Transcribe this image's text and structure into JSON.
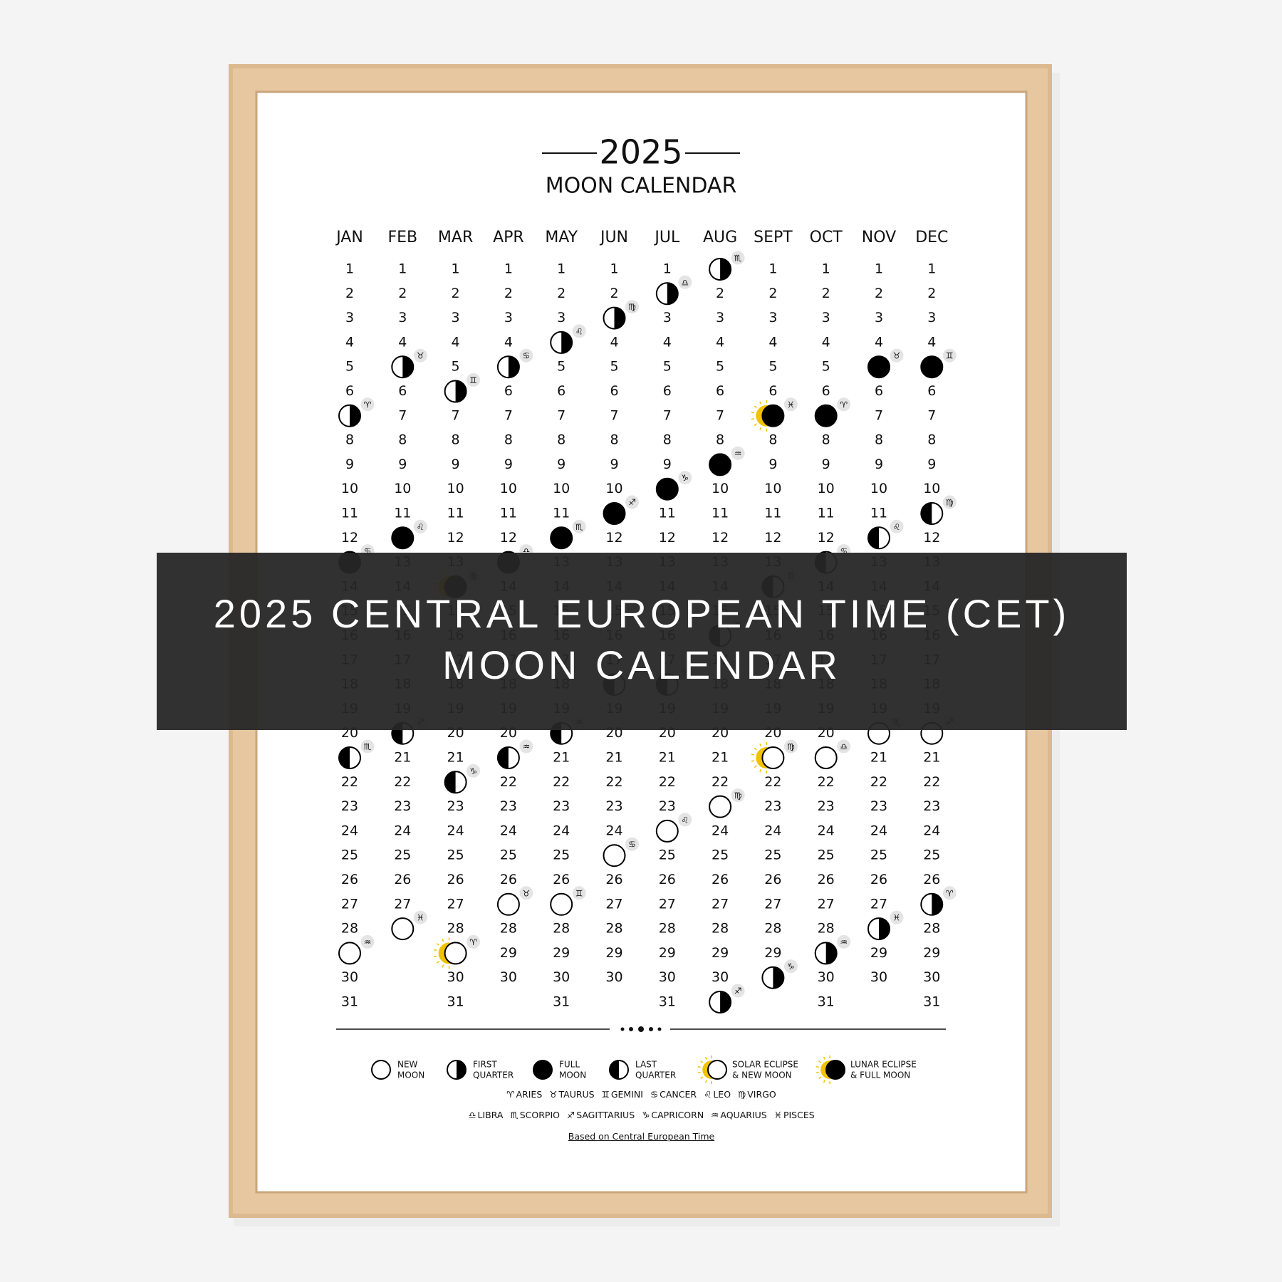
{
  "poster": {
    "year": "2025",
    "subtitle": "MOON CALENDAR"
  },
  "months": [
    {
      "name": "JAN",
      "days": [
        1,
        2,
        3,
        4,
        5,
        6,
        8,
        9,
        10,
        11,
        12,
        14,
        15,
        16,
        17,
        18,
        19,
        20,
        22,
        23,
        24,
        25,
        26,
        27,
        28,
        30,
        31
      ],
      "phases": [
        {
          "day": 7,
          "phase": "first",
          "sign": "♈"
        },
        {
          "day": 13,
          "phase": "full",
          "sign": "♋"
        },
        {
          "day": 21,
          "phase": "last",
          "sign": "♏"
        },
        {
          "day": 29,
          "phase": "new",
          "sign": "♒"
        }
      ]
    },
    {
      "name": "FEB",
      "days": [
        1,
        2,
        3,
        4,
        6,
        7,
        8,
        9,
        10,
        11,
        13,
        14,
        15,
        16,
        17,
        18,
        19,
        21,
        22,
        23,
        24,
        25,
        26,
        27
      ],
      "phases": [
        {
          "day": 5,
          "phase": "first",
          "sign": "♉"
        },
        {
          "day": 12,
          "phase": "full",
          "sign": "♌"
        },
        {
          "day": 20,
          "phase": "last",
          "sign": "♐"
        },
        {
          "day": 28,
          "phase": "new",
          "sign": "♓"
        }
      ]
    },
    {
      "name": "MAR",
      "days": [
        1,
        2,
        3,
        4,
        5,
        7,
        8,
        9,
        10,
        11,
        12,
        13,
        15,
        16,
        17,
        18,
        19,
        20,
        21,
        23,
        24,
        25,
        26,
        27,
        28,
        30,
        31
      ],
      "phases": [
        {
          "day": 6,
          "phase": "first",
          "sign": "♊"
        },
        {
          "day": 14,
          "phase": "lunar",
          "sign": "♍"
        },
        {
          "day": 22,
          "phase": "last",
          "sign": "♑"
        },
        {
          "day": 29,
          "phase": "solar",
          "sign": "♈"
        }
      ]
    },
    {
      "name": "APR",
      "days": [
        1,
        2,
        3,
        4,
        6,
        7,
        8,
        9,
        10,
        11,
        12,
        14,
        15,
        16,
        17,
        18,
        19,
        20,
        22,
        23,
        24,
        25,
        26,
        28,
        29,
        30
      ],
      "phases": [
        {
          "day": 5,
          "phase": "first",
          "sign": "♋"
        },
        {
          "day": 13,
          "phase": "full",
          "sign": "♎"
        },
        {
          "day": 21,
          "phase": "last",
          "sign": "♒"
        },
        {
          "day": 27,
          "phase": "new",
          "sign": "♉"
        }
      ]
    },
    {
      "name": "MAY",
      "days": [
        1,
        2,
        3,
        5,
        6,
        7,
        8,
        9,
        10,
        11,
        13,
        14,
        15,
        16,
        17,
        18,
        19,
        21,
        22,
        23,
        24,
        25,
        26,
        28,
        29,
        30,
        31
      ],
      "phases": [
        {
          "day": 4,
          "phase": "first",
          "sign": "♌"
        },
        {
          "day": 12,
          "phase": "full",
          "sign": "♏"
        },
        {
          "day": 20,
          "phase": "last",
          "sign": "♒"
        },
        {
          "day": 27,
          "phase": "new",
          "sign": "♊"
        }
      ]
    },
    {
      "name": "JUN",
      "days": [
        1,
        2,
        4,
        5,
        6,
        7,
        8,
        9,
        10,
        12,
        13,
        14,
        15,
        16,
        17,
        19,
        20,
        21,
        22,
        23,
        24,
        26,
        27,
        28,
        29,
        30
      ],
      "phases": [
        {
          "day": 3,
          "phase": "first",
          "sign": "♍"
        },
        {
          "day": 11,
          "phase": "full",
          "sign": "♐"
        },
        {
          "day": 18,
          "phase": "last",
          "sign": "♓"
        },
        {
          "day": 25,
          "phase": "new",
          "sign": "♋"
        }
      ]
    },
    {
      "name": "JUL",
      "days": [
        1,
        3,
        4,
        5,
        6,
        7,
        8,
        9,
        11,
        12,
        13,
        14,
        15,
        16,
        17,
        19,
        20,
        21,
        22,
        23,
        25,
        26,
        27,
        28,
        29,
        30,
        31
      ],
      "phases": [
        {
          "day": 2,
          "phase": "first",
          "sign": "♎"
        },
        {
          "day": 10,
          "phase": "full",
          "sign": "♑"
        },
        {
          "day": 18,
          "phase": "last",
          "sign": "♈"
        },
        {
          "day": 24,
          "phase": "new",
          "sign": "♌"
        }
      ]
    },
    {
      "name": "AUG",
      "days": [
        2,
        3,
        4,
        5,
        6,
        7,
        8,
        10,
        11,
        12,
        13,
        14,
        15,
        17,
        18,
        19,
        20,
        21,
        22,
        24,
        25,
        26,
        27,
        28,
        29,
        30
      ],
      "phases": [
        {
          "day": 1,
          "phase": "first",
          "sign": "♏"
        },
        {
          "day": 9,
          "phase": "full",
          "sign": "♒"
        },
        {
          "day": 16,
          "phase": "last",
          "sign": "♉"
        },
        {
          "day": 23,
          "phase": "new",
          "sign": "♍"
        },
        {
          "day": 31,
          "phase": "first",
          "sign": "♐"
        }
      ]
    },
    {
      "name": "SEPT",
      "days": [
        1,
        2,
        3,
        4,
        5,
        6,
        8,
        9,
        10,
        11,
        12,
        13,
        15,
        16,
        17,
        18,
        19,
        20,
        22,
        23,
        24,
        25,
        26,
        27,
        28,
        29
      ],
      "phases": [
        {
          "day": 7,
          "phase": "lunar",
          "sign": "♓"
        },
        {
          "day": 14,
          "phase": "last",
          "sign": "♊"
        },
        {
          "day": 21,
          "phase": "solar",
          "sign": "♍"
        },
        {
          "day": 30,
          "phase": "first",
          "sign": "♑"
        }
      ]
    },
    {
      "name": "OCT",
      "days": [
        1,
        2,
        3,
        4,
        5,
        6,
        8,
        9,
        10,
        11,
        12,
        14,
        15,
        16,
        17,
        18,
        19,
        20,
        22,
        23,
        24,
        25,
        26,
        27,
        28,
        30,
        31
      ],
      "phases": [
        {
          "day": 7,
          "phase": "full",
          "sign": "♈"
        },
        {
          "day": 13,
          "phase": "last",
          "sign": "♋"
        },
        {
          "day": 21,
          "phase": "new",
          "sign": "♎"
        },
        {
          "day": 29,
          "phase": "first",
          "sign": "♒"
        }
      ]
    },
    {
      "name": "NOV",
      "days": [
        1,
        2,
        3,
        4,
        6,
        7,
        8,
        9,
        10,
        11,
        13,
        14,
        15,
        16,
        17,
        18,
        19,
        21,
        22,
        23,
        24,
        25,
        26,
        27,
        29,
        30
      ],
      "phases": [
        {
          "day": 5,
          "phase": "full",
          "sign": "♉"
        },
        {
          "day": 12,
          "phase": "last",
          "sign": "♌"
        },
        {
          "day": 20,
          "phase": "new",
          "sign": "♏"
        },
        {
          "day": 28,
          "phase": "first",
          "sign": "♓"
        }
      ]
    },
    {
      "name": "DEC",
      "days": [
        1,
        2,
        3,
        4,
        6,
        7,
        8,
        9,
        10,
        12,
        13,
        14,
        15,
        16,
        17,
        18,
        19,
        21,
        22,
        23,
        24,
        25,
        26,
        28,
        29,
        30,
        31
      ],
      "phases": [
        {
          "day": 5,
          "phase": "full",
          "sign": "♊"
        },
        {
          "day": 11,
          "phase": "last",
          "sign": "♍"
        },
        {
          "day": 20,
          "phase": "new",
          "sign": "♐"
        },
        {
          "day": 27,
          "phase": "first",
          "sign": "♈"
        }
      ]
    }
  ],
  "legend": [
    {
      "phase": "new",
      "lines": [
        "NEW",
        "MOON"
      ]
    },
    {
      "phase": "first",
      "lines": [
        "FIRST",
        "QUARTER"
      ]
    },
    {
      "phase": "full",
      "lines": [
        "FULL",
        "MOON"
      ]
    },
    {
      "phase": "last",
      "lines": [
        "LAST",
        "QUARTER"
      ]
    },
    {
      "phase": "solar",
      "lines": [
        "SOLAR ECLIPSE",
        "& NEW MOON"
      ]
    },
    {
      "phase": "lunar",
      "lines": [
        "LUNAR ECLIPSE",
        "& FULL MOON"
      ]
    }
  ],
  "zodiac_legend": [
    [
      {
        "symbol": "♈",
        "name": "ARIES"
      },
      {
        "symbol": "♉",
        "name": "TAURUS"
      },
      {
        "symbol": "♊",
        "name": "GEMINI"
      },
      {
        "symbol": "♋",
        "name": "CANCER"
      },
      {
        "symbol": "♌",
        "name": "LEO"
      },
      {
        "symbol": "♍",
        "name": "VIRGO"
      }
    ],
    [
      {
        "symbol": "♎",
        "name": "LIBRA"
      },
      {
        "symbol": "♏",
        "name": "SCORPIO"
      },
      {
        "symbol": "♐",
        "name": "SAGITTARIUS"
      },
      {
        "symbol": "♑",
        "name": "CAPRICORN"
      },
      {
        "symbol": "♒",
        "name": "AQUARIUS"
      },
      {
        "symbol": "♓",
        "name": "PISCES"
      }
    ]
  ],
  "footnote": "Based on Central European Time",
  "banner": [
    "2025 CENTRAL EUROPEAN TIME (CET)",
    "MOON CALENDAR"
  ]
}
